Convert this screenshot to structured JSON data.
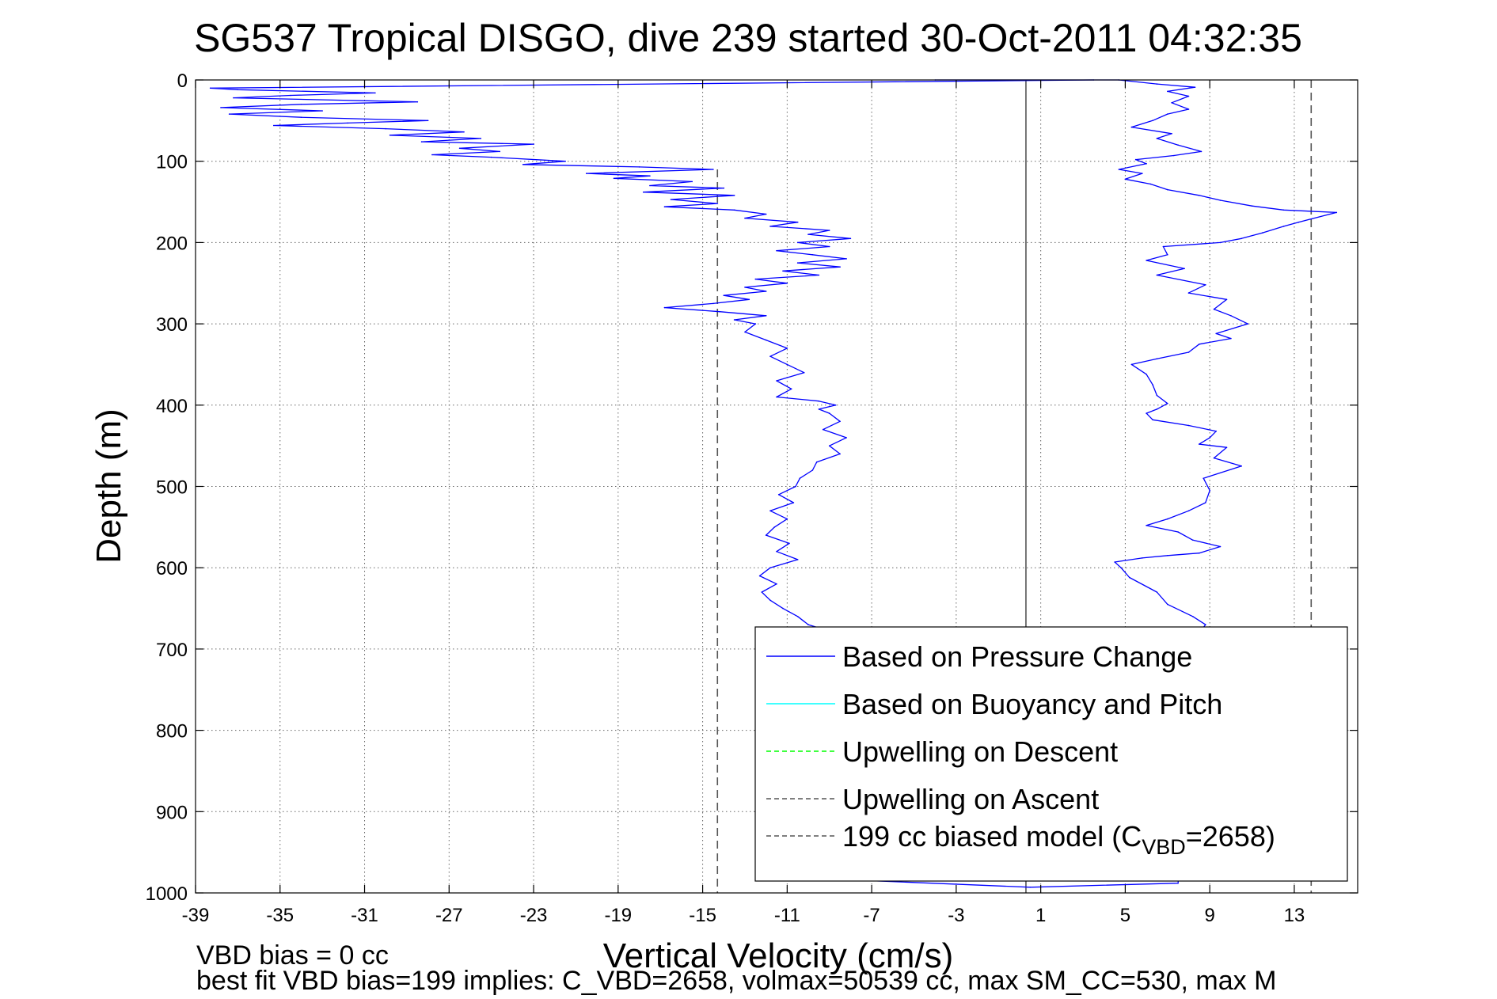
{
  "chart_data": {
    "type": "line",
    "title": "SG537 Tropical DISGO, dive 239 started 30-Oct-2011 04:32:35",
    "xlabel": "Vertical Velocity (cm/s)",
    "ylabel": "Depth (m)",
    "xlim": [
      -39,
      16
    ],
    "ylim": [
      0,
      1000
    ],
    "y_reversed": true,
    "grid": true,
    "x_ticks": [
      -39,
      -35,
      -31,
      -27,
      -23,
      -19,
      -15,
      -11,
      -7,
      -3,
      1,
      5,
      9,
      13
    ],
    "y_ticks": [
      0,
      100,
      200,
      300,
      400,
      500,
      600,
      700,
      800,
      900,
      1000
    ],
    "legend": {
      "placement": "bottom-right",
      "entries": [
        {
          "label": "Based on Pressure Change",
          "color": "#0000ff",
          "style": "solid"
        },
        {
          "label": "Based on Buoyancy and Pitch",
          "color": "#00ffff",
          "style": "solid"
        },
        {
          "label": "Upwelling on Descent",
          "color": "#00ff00",
          "style": "dashed"
        },
        {
          "label": "Upwelling on Ascent",
          "color": "#555555",
          "style": "dashed"
        },
        {
          "label_main": "199 cc biased model (C",
          "label_sub": "VBD",
          "label_tail": "=2658)",
          "color": "#555555",
          "style": "dashed"
        }
      ]
    },
    "series": [
      {
        "role": "descent-pressure",
        "color": "#0000ff",
        "points": [
          [
            3.5,
            0
          ],
          [
            -38.3,
            10
          ],
          [
            -37.0,
            12
          ],
          [
            -30.5,
            16
          ],
          [
            -34.5,
            19
          ],
          [
            -37.2,
            22
          ],
          [
            -28.5,
            27
          ],
          [
            -34.0,
            30
          ],
          [
            -37.8,
            34
          ],
          [
            -33.0,
            38
          ],
          [
            -37.4,
            42
          ],
          [
            -34.0,
            46
          ],
          [
            -28.0,
            50
          ],
          [
            -31.8,
            53
          ],
          [
            -35.3,
            56
          ],
          [
            -30.0,
            60
          ],
          [
            -26.3,
            64
          ],
          [
            -29.8,
            68
          ],
          [
            -25.5,
            72
          ],
          [
            -28.3,
            76
          ],
          [
            -23.0,
            79
          ],
          [
            -26.5,
            84
          ],
          [
            -24.6,
            88
          ],
          [
            -27.8,
            92
          ],
          [
            -25.0,
            95
          ],
          [
            -21.5,
            100
          ],
          [
            -23.5,
            104
          ],
          [
            -18.0,
            107
          ],
          [
            -14.5,
            110
          ],
          [
            -20.5,
            115
          ],
          [
            -17.5,
            118
          ],
          [
            -19.2,
            121
          ],
          [
            -15.5,
            125
          ],
          [
            -17.5,
            130
          ],
          [
            -14.0,
            133
          ],
          [
            -17.8,
            138
          ],
          [
            -13.5,
            142
          ],
          [
            -16.5,
            147
          ],
          [
            -14.3,
            152
          ],
          [
            -16.8,
            156
          ],
          [
            -13.5,
            160
          ],
          [
            -12.0,
            165
          ],
          [
            -13.0,
            170
          ],
          [
            -10.5,
            175
          ],
          [
            -11.8,
            180
          ],
          [
            -9.0,
            185
          ],
          [
            -10.0,
            190
          ],
          [
            -8.0,
            195
          ],
          [
            -10.5,
            200
          ],
          [
            -9.0,
            205
          ],
          [
            -11.5,
            210
          ],
          [
            -9.8,
            215
          ],
          [
            -8.2,
            220
          ],
          [
            -10.5,
            225
          ],
          [
            -8.5,
            230
          ],
          [
            -11.2,
            235
          ],
          [
            -9.5,
            240
          ],
          [
            -12.5,
            245
          ],
          [
            -11.0,
            250
          ],
          [
            -13.0,
            255
          ],
          [
            -12.0,
            260
          ],
          [
            -14.0,
            265
          ],
          [
            -12.8,
            270
          ],
          [
            -14.5,
            275
          ],
          [
            -16.8,
            280
          ],
          [
            -14.2,
            285
          ],
          [
            -12.0,
            290
          ],
          [
            -13.5,
            295
          ],
          [
            -12.5,
            300
          ],
          [
            -13.0,
            310
          ],
          [
            -12.0,
            320
          ],
          [
            -11.0,
            330
          ],
          [
            -11.8,
            340
          ],
          [
            -11.0,
            350
          ],
          [
            -10.2,
            360
          ],
          [
            -11.5,
            370
          ],
          [
            -10.8,
            380
          ],
          [
            -11.5,
            390
          ],
          [
            -9.5,
            395
          ],
          [
            -8.7,
            400
          ],
          [
            -9.5,
            405
          ],
          [
            -9.0,
            410
          ],
          [
            -8.5,
            420
          ],
          [
            -9.3,
            430
          ],
          [
            -8.2,
            440
          ],
          [
            -9.0,
            450
          ],
          [
            -8.5,
            460
          ],
          [
            -9.6,
            470
          ],
          [
            -9.8,
            480
          ],
          [
            -10.4,
            490
          ],
          [
            -10.6,
            500
          ],
          [
            -11.4,
            510
          ],
          [
            -10.7,
            520
          ],
          [
            -11.8,
            530
          ],
          [
            -11.0,
            540
          ],
          [
            -11.6,
            550
          ],
          [
            -12.0,
            560
          ],
          [
            -10.9,
            570
          ],
          [
            -11.5,
            580
          ],
          [
            -10.5,
            590
          ],
          [
            -11.8,
            600
          ],
          [
            -12.3,
            610
          ],
          [
            -11.5,
            620
          ],
          [
            -12.2,
            630
          ],
          [
            -11.8,
            640
          ],
          [
            -11.2,
            650
          ],
          [
            -10.5,
            660
          ],
          [
            -10.0,
            670
          ],
          [
            -9.0,
            678
          ],
          [
            -7.5,
            685
          ],
          [
            -7.0,
            690
          ]
        ]
      },
      {
        "role": "ascent-pressure",
        "color": "#0000ff",
        "points": [
          [
            -7.0,
            985
          ],
          [
            0.5,
            993
          ],
          [
            7.5,
            988
          ],
          [
            8.5,
            680
          ],
          [
            8.8,
            670
          ],
          [
            8.2,
            660
          ],
          [
            7.0,
            645
          ],
          [
            6.5,
            630
          ],
          [
            5.2,
            612
          ],
          [
            4.8,
            600
          ],
          [
            4.5,
            593
          ],
          [
            5.8,
            588
          ],
          [
            7.0,
            585
          ],
          [
            8.5,
            582
          ],
          [
            9.5,
            574
          ],
          [
            8.2,
            566
          ],
          [
            7.5,
            556
          ],
          [
            6.0,
            548
          ],
          [
            7.0,
            540
          ],
          [
            8.0,
            530
          ],
          [
            8.8,
            520
          ],
          [
            9.0,
            505
          ],
          [
            8.7,
            490
          ],
          [
            10.5,
            475
          ],
          [
            9.2,
            465
          ],
          [
            9.8,
            452
          ],
          [
            8.5,
            448
          ],
          [
            9.0,
            440
          ],
          [
            9.3,
            432
          ],
          [
            8.0,
            425
          ],
          [
            6.3,
            418
          ],
          [
            6.0,
            410
          ],
          [
            6.5,
            405
          ],
          [
            7.0,
            398
          ],
          [
            6.5,
            388
          ],
          [
            6.3,
            375
          ],
          [
            6.0,
            362
          ],
          [
            5.3,
            350
          ],
          [
            6.5,
            343
          ],
          [
            8.0,
            335
          ],
          [
            8.5,
            325
          ],
          [
            10.0,
            318
          ],
          [
            9.3,
            312
          ],
          [
            10.8,
            300
          ],
          [
            10.0,
            290
          ],
          [
            9.2,
            282
          ],
          [
            9.8,
            270
          ],
          [
            8.0,
            262
          ],
          [
            8.8,
            252
          ],
          [
            6.5,
            240
          ],
          [
            7.8,
            232
          ],
          [
            6.0,
            222
          ],
          [
            7.0,
            215
          ],
          [
            6.8,
            205
          ],
          [
            9.5,
            200
          ],
          [
            10.5,
            195
          ],
          [
            11.5,
            188
          ],
          [
            12.5,
            180
          ],
          [
            13.2,
            175
          ],
          [
            15.0,
            163
          ],
          [
            12.5,
            160
          ],
          [
            11.0,
            155
          ],
          [
            9.5,
            148
          ],
          [
            8.5,
            142
          ],
          [
            7.0,
            135
          ],
          [
            6.2,
            128
          ],
          [
            5.0,
            122
          ],
          [
            5.8,
            115
          ],
          [
            4.7,
            110
          ],
          [
            6.0,
            103
          ],
          [
            5.5,
            98
          ],
          [
            7.3,
            93
          ],
          [
            8.6,
            88
          ],
          [
            7.5,
            80
          ],
          [
            6.5,
            72
          ],
          [
            7.2,
            66
          ],
          [
            5.3,
            58
          ],
          [
            6.3,
            50
          ],
          [
            7.0,
            42
          ],
          [
            8.0,
            36
          ],
          [
            7.2,
            28
          ],
          [
            8.0,
            20
          ],
          [
            7.0,
            14
          ],
          [
            8.3,
            9
          ],
          [
            6.5,
            5
          ],
          [
            4.7,
            0
          ],
          [
            -4.0,
            0
          ]
        ]
      }
    ],
    "vertical_lines": [
      {
        "x": -14.3,
        "y_from": 110,
        "y_to": 1000,
        "color": "#555555",
        "style": "dashed"
      },
      {
        "x": 0.3,
        "y_from": 0,
        "y_to": 1000,
        "color": "#555555",
        "style": "solid"
      },
      {
        "x": 13.8,
        "y_from": 0,
        "y_to": 1000,
        "color": "#555555",
        "style": "dashed"
      }
    ]
  },
  "footer": {
    "line1": "VBD bias = 0 cc",
    "line2": "best fit VBD bias=199 implies: C_VBD=2658, volmax=50539 cc, max SM_CC=530, max M"
  }
}
